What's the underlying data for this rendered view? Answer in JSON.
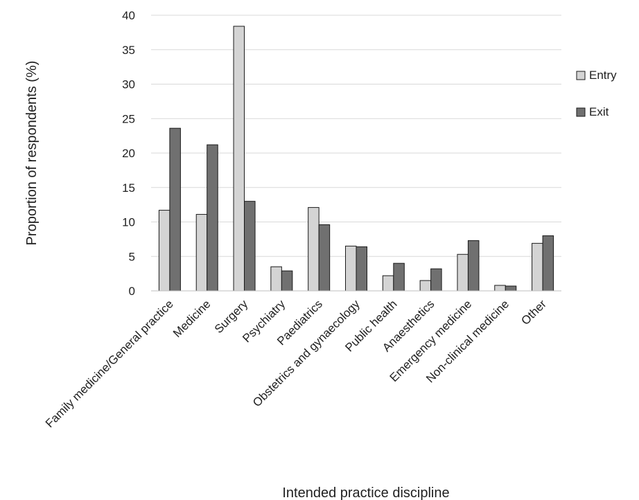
{
  "chart_data": {
    "type": "bar",
    "title": "",
    "xlabel": "Intended practice discipline",
    "ylabel": "Proportion of respondents (%)",
    "ylim": [
      0,
      40
    ],
    "yticks": [
      0,
      5,
      10,
      15,
      20,
      25,
      30,
      35,
      40
    ],
    "grid": true,
    "legend_position": "right",
    "categories": [
      "Family medicine/General practice",
      "Medicine",
      "Surgery",
      "Psychiatry",
      "Paediatrics",
      "Obstetrics and gynaecology",
      "Public health",
      "Anaesthetics",
      "Emergency medicine",
      "Non-clinical medicine",
      "Other"
    ],
    "series": [
      {
        "name": "Entry",
        "color": "#d4d4d4",
        "values": [
          11.7,
          11.1,
          38.4,
          3.5,
          12.1,
          6.5,
          2.2,
          1.5,
          5.3,
          0.8,
          6.9
        ]
      },
      {
        "name": "Exit",
        "color": "#707070",
        "values": [
          23.6,
          21.2,
          13.0,
          2.9,
          9.6,
          6.4,
          4.0,
          3.2,
          7.3,
          0.7,
          8.0
        ]
      }
    ]
  }
}
